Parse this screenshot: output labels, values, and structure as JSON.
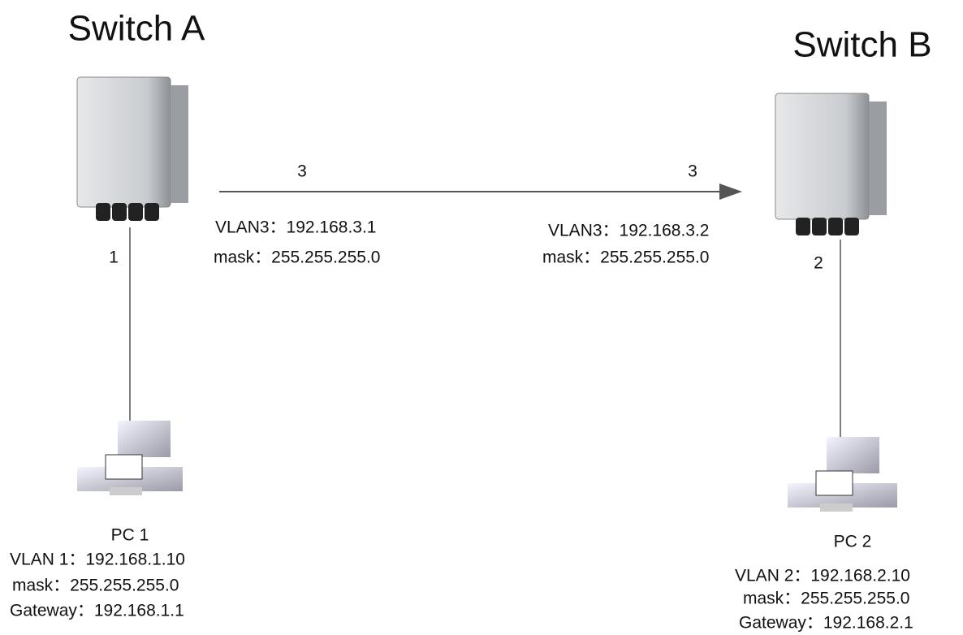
{
  "nodes": [
    {
      "label": "Switch A"
    },
    {
      "label": "Switch B"
    },
    {
      "label": "PC 1",
      "info": [
        "VLAN 1：192.168.1.10",
        "mask：255.255.255.0",
        "Gateway：192.168.1.1"
      ]
    },
    {
      "label": "PC 2",
      "info": [
        "VLAN 2：192.168.2.10",
        "mask：255.255.255.0",
        "Gateway：192.168.2.1"
      ]
    }
  ],
  "links": [
    {
      "ports": [
        "3",
        "3"
      ],
      "info": [
        [
          "VLAN3：192.168.3.1",
          "mask：255.255.255.0"
        ],
        [
          "VLAN3：192.168.3.2",
          "mask：255.255.255.0"
        ]
      ]
    },
    {
      "ports": [
        "1"
      ]
    },
    {
      "ports": [
        "2"
      ]
    }
  ]
}
